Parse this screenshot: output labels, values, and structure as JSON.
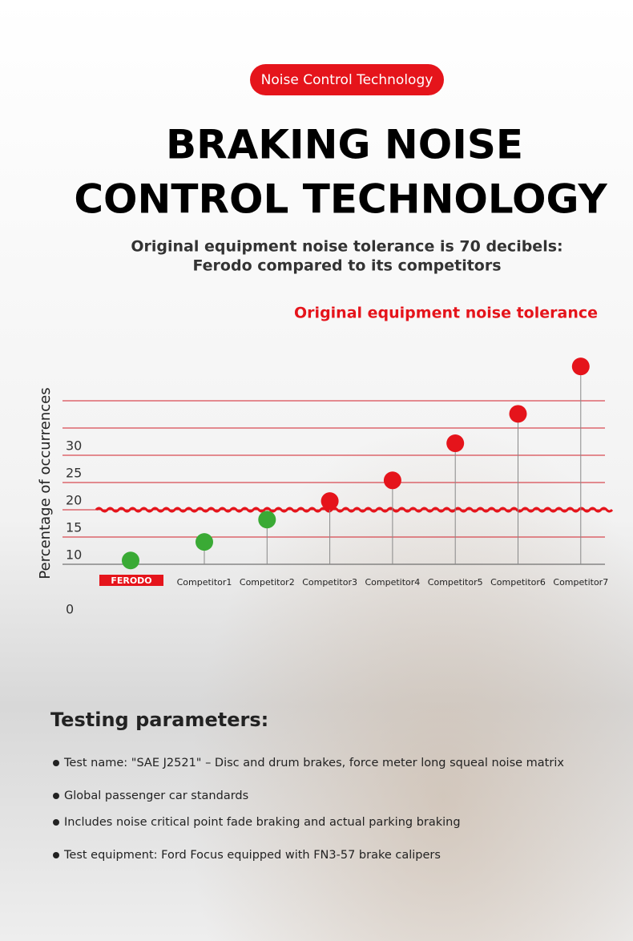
{
  "badge": "Noise Control Technology",
  "headline": [
    "BRAKING NOISE",
    "CONTROL TECHNOLOGY"
  ],
  "subtitle": [
    "Original equipment noise tolerance is 70 decibels:",
    "Ferodo compared to its competitors"
  ],
  "chart_data": {
    "type": "lollipop",
    "legend_label": "Original equipment noise tolerance",
    "y_label": "Percentage of occurrences",
    "categories": [
      "FERODO",
      "Competitor1",
      "Competitor2",
      "Competitor3",
      "Competitor4",
      "Competitor5",
      "Competitor6",
      "Competitor7"
    ],
    "values": [
      10.7,
      14.1,
      18.2,
      21.6,
      25.4,
      32.2,
      37.6,
      46.3
    ],
    "colors": [
      "#3aaa35",
      "#3aaa35",
      "#3aaa35",
      "#e5141b",
      "#e5141b",
      "#e5141b",
      "#e5141b",
      "#e5141b"
    ],
    "tolerance": 20,
    "tolerance_color": "#e5141b",
    "ylim": [
      0,
      50
    ],
    "yticks": [
      0,
      10,
      15,
      20,
      25,
      30
    ],
    "gridlines": [
      15,
      20,
      25,
      30,
      35,
      40
    ],
    "grid_color": "#d2202a"
  },
  "params": {
    "title": "Testing parameters:",
    "items": [
      "Test name: \"SAE J2521\" – Disc and drum brakes, force meter long squeal noise matrix",
      "Global passenger car standards",
      "Includes noise critical point fade braking and actual parking braking",
      "Test equipment: Ford Focus equipped with FN3-57 brake calipers"
    ]
  }
}
